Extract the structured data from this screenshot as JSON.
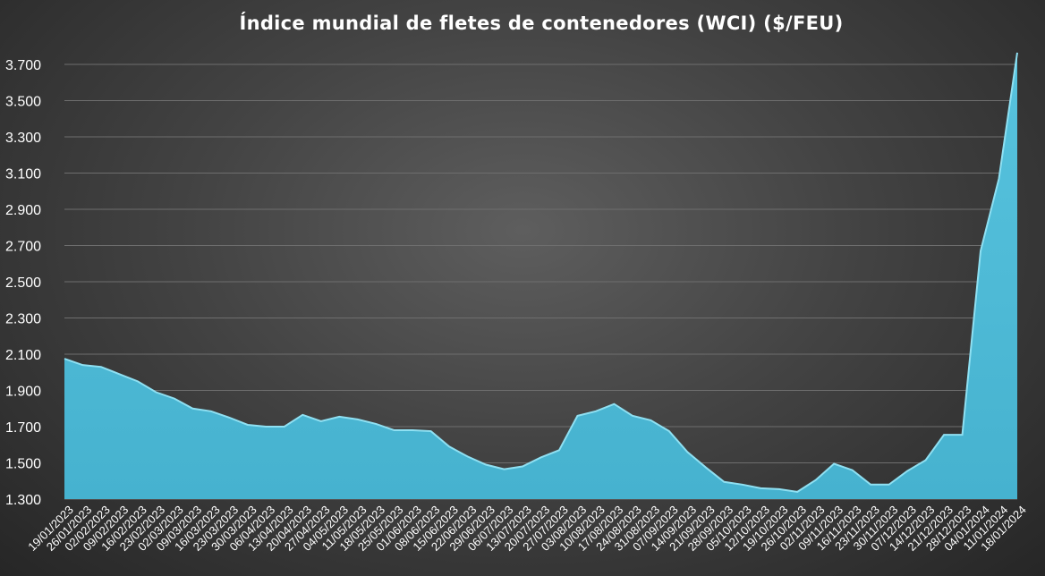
{
  "chart_data": {
    "type": "area",
    "title": "Índice mundial de fletes de contenedores (WCI) ($/FEU)",
    "xlabel": "",
    "ylabel": "",
    "ylim": [
      1300,
      3700
    ],
    "yticks": [
      1300,
      1500,
      1700,
      1900,
      2100,
      2300,
      2500,
      2700,
      2900,
      3100,
      3300,
      3500,
      3700
    ],
    "ytick_labels": [
      "1.300",
      "1.500",
      "1.700",
      "1.900",
      "2.100",
      "2.300",
      "2.500",
      "2.700",
      "2.900",
      "3.100",
      "3.300",
      "3.500",
      "3.700"
    ],
    "grid": true,
    "legend": "none",
    "fill_color": "#4ab6d3",
    "x": [
      "19/01/2023",
      "26/01/2023",
      "02/02/2023",
      "09/02/2023",
      "16/02/2023",
      "23/02/2023",
      "02/03/2023",
      "09/03/2023",
      "16/03/2023",
      "23/03/2023",
      "30/03/2023",
      "06/04/2023",
      "13/04/2023",
      "20/04/2023",
      "27/04/2023",
      "04/05/2023",
      "11/05/2023",
      "18/05/2023",
      "25/05/2023",
      "01/06/2023",
      "08/06/2023",
      "15/06/2023",
      "22/06/2023",
      "29/06/2023",
      "06/07/2023",
      "13/07/2023",
      "20/07/2023",
      "27/07/2023",
      "03/08/2023",
      "10/08/2023",
      "17/08/2023",
      "24/08/2023",
      "31/08/2023",
      "07/09/2023",
      "14/09/2023",
      "21/09/2023",
      "28/09/2023",
      "05/10/2023",
      "12/10/2023",
      "19/10/2023",
      "26/10/2023",
      "02/11/2023",
      "09/11/2023",
      "16/11/2023",
      "23/11/2023",
      "30/11/2023",
      "07/12/2023",
      "14/12/2023",
      "21/12/2023",
      "28/12/2023",
      "04/01/2024",
      "11/01/2024",
      "18/01/2024"
    ],
    "values": [
      2075,
      2040,
      2030,
      1990,
      1950,
      1890,
      1855,
      1800,
      1785,
      1750,
      1710,
      1700,
      1700,
      1765,
      1730,
      1755,
      1740,
      1715,
      1680,
      1680,
      1675,
      1590,
      1535,
      1490,
      1465,
      1480,
      1530,
      1570,
      1760,
      1785,
      1825,
      1760,
      1735,
      1675,
      1560,
      1475,
      1395,
      1380,
      1360,
      1355,
      1340,
      1405,
      1495,
      1460,
      1380,
      1380,
      1455,
      1515,
      1655,
      1655,
      2670,
      3070,
      3765
    ]
  }
}
